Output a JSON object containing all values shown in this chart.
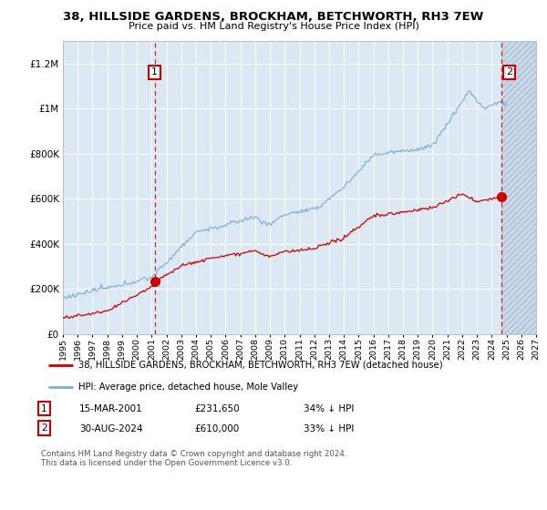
{
  "title1": "38, HILLSIDE GARDENS, BROCKHAM, BETCHWORTH, RH3 7EW",
  "title2": "Price paid vs. HM Land Registry's House Price Index (HPI)",
  "background_color": "#dce9f5",
  "hatch_color": "#c8d8e8",
  "grid_color": "#ffffff",
  "red_line_color": "#cc0000",
  "blue_line_color": "#7aadcf",
  "ylim": [
    0,
    1300000
  ],
  "yticks": [
    0,
    200000,
    400000,
    600000,
    800000,
    1000000,
    1200000
  ],
  "ytick_labels": [
    "£0",
    "£200K",
    "£400K",
    "£600K",
    "£800K",
    "£1M",
    "£1.2M"
  ],
  "xlim_start": 1995.0,
  "xlim_end": 2027.0,
  "hatch_start": 2024.67,
  "marker1_x": 2001.2,
  "marker1_y": 231650,
  "marker2_x": 2024.67,
  "marker2_y": 610000,
  "legend_line1": "38, HILLSIDE GARDENS, BROCKHAM, BETCHWORTH, RH3 7EW (detached house)",
  "legend_line2": "HPI: Average price, detached house, Mole Valley",
  "table_row1": [
    "1",
    "15-MAR-2001",
    "£231,650",
    "34% ↓ HPI"
  ],
  "table_row2": [
    "2",
    "30-AUG-2024",
    "£610,000",
    "33% ↓ HPI"
  ],
  "footer": "Contains HM Land Registry data © Crown copyright and database right 2024.\nThis data is licensed under the Open Government Licence v3.0."
}
